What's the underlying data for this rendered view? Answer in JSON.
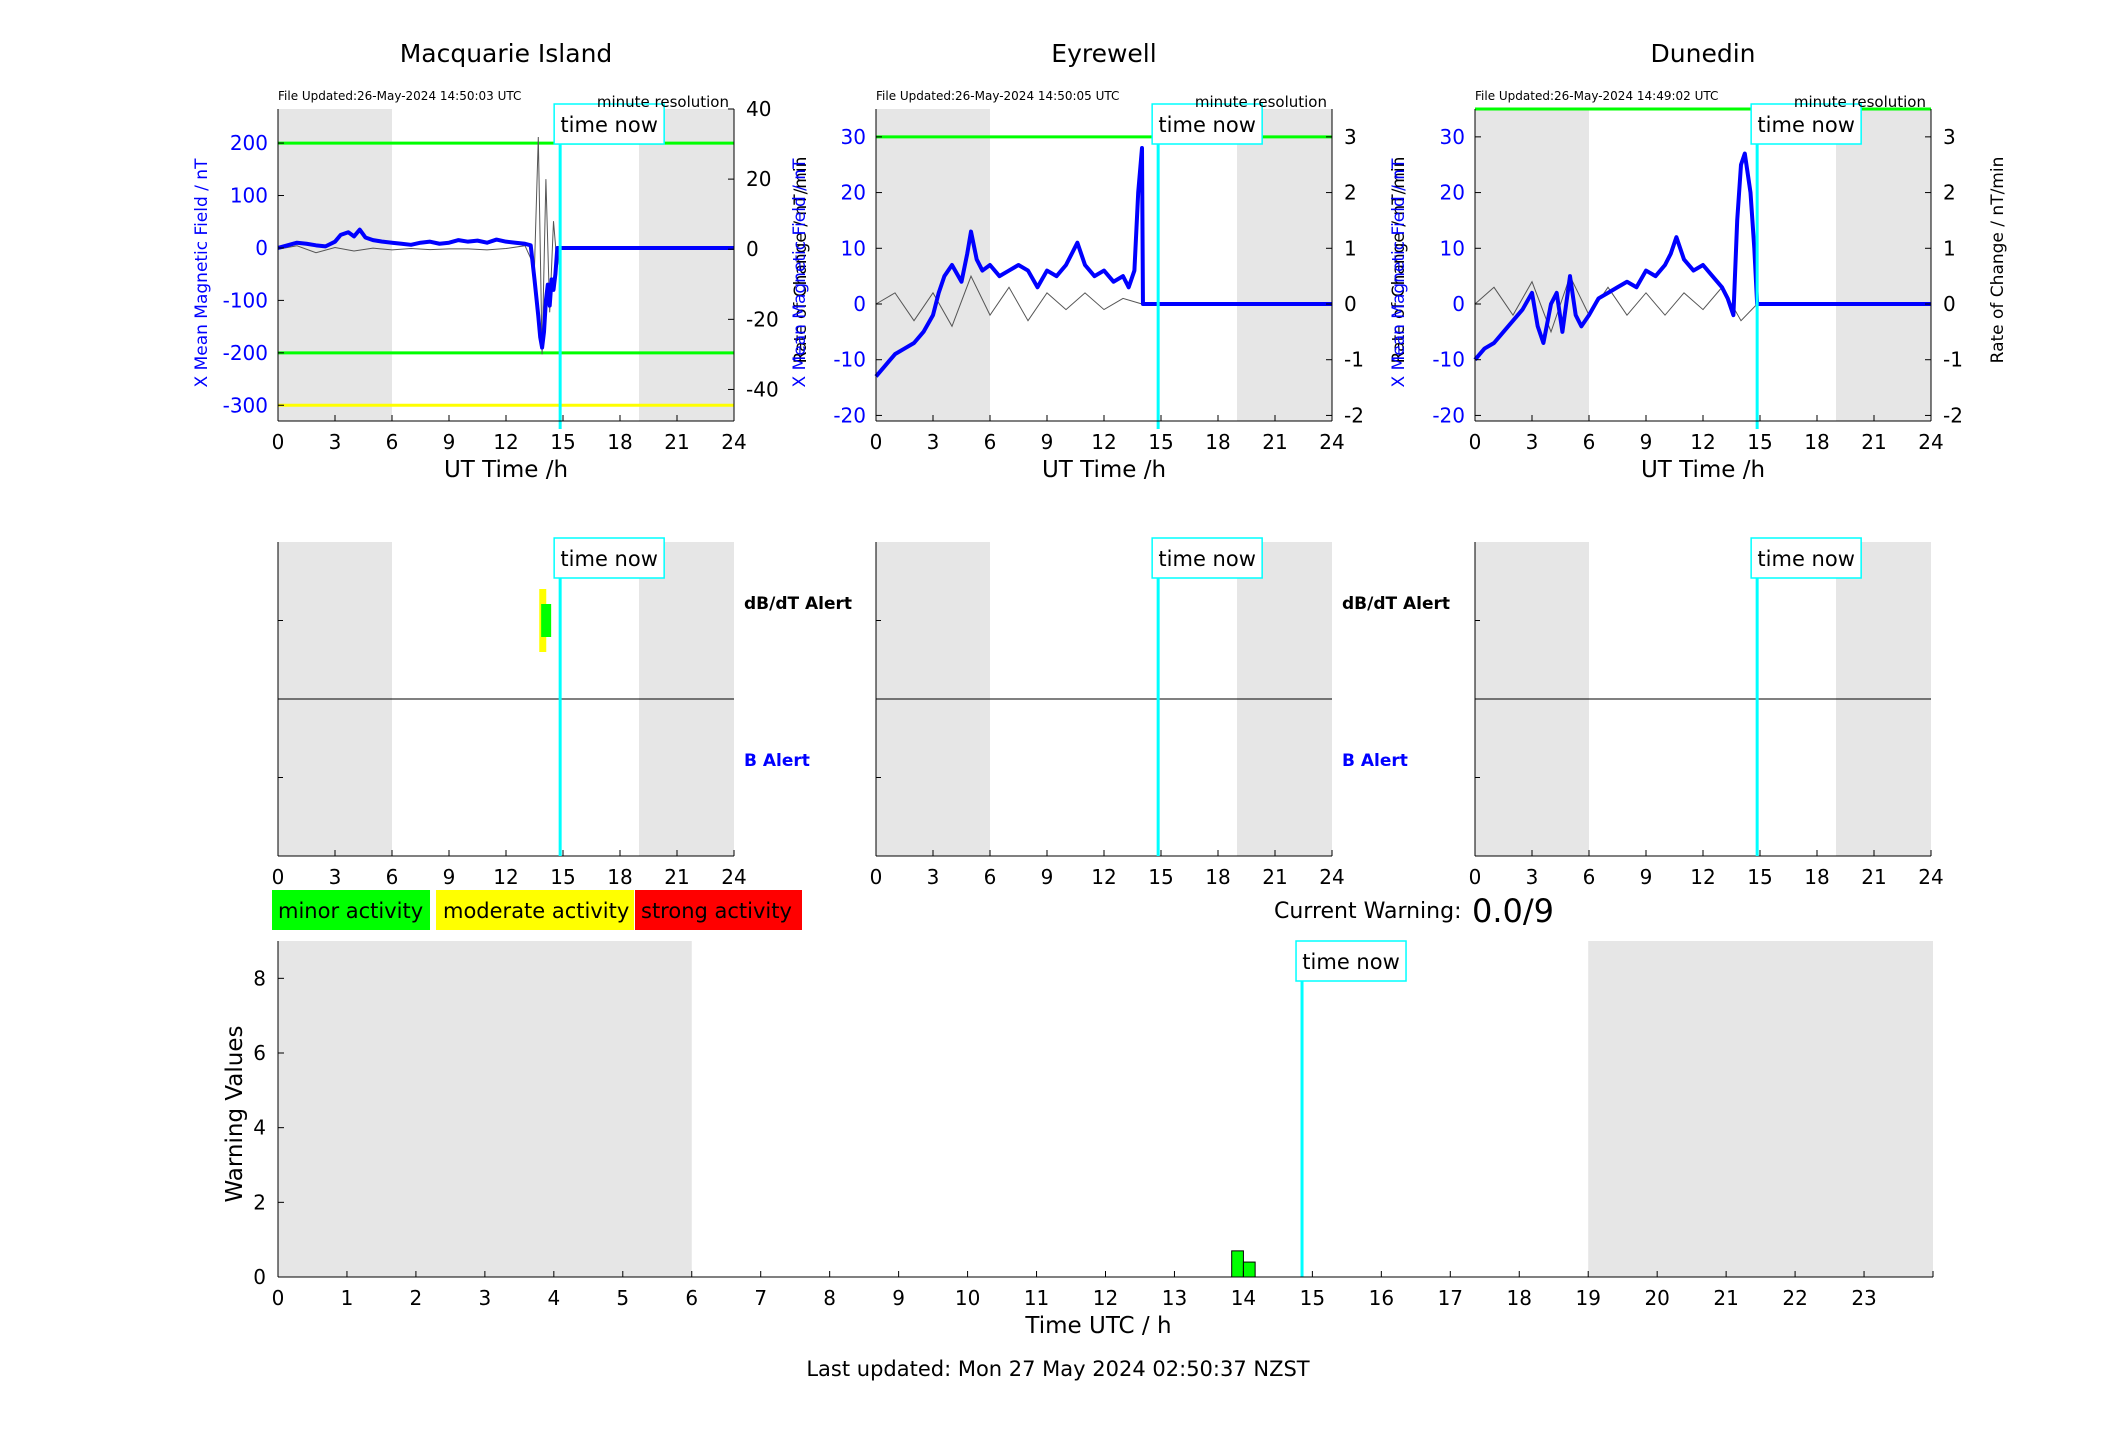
{
  "stations": [
    {
      "name": "Macquarie Island",
      "file_updated": "File Updated:26-May-2024 14:50:03 UTC",
      "resolution": "minute resolution",
      "time_now_label": "time now",
      "ylabel_left": "X Mean Magnetic Field / nT",
      "ylabel_right": "Rate of Change / nT/min",
      "xlabel": "UT Time /h",
      "x_ticks": [
        0,
        3,
        6,
        9,
        12,
        15,
        18,
        21,
        24
      ],
      "yleft_ticks": [
        200,
        100,
        0,
        -100,
        -200,
        -300
      ],
      "yright_ticks": [
        40,
        20,
        0,
        -20,
        -40
      ]
    },
    {
      "name": "Eyrewell",
      "file_updated": "File Updated:26-May-2024 14:50:05 UTC",
      "resolution": "minute resolution",
      "time_now_label": "time now",
      "ylabel_left": "X Mean Magnetic Field / nT",
      "ylabel_right": "Rate of Change / nT/min",
      "xlabel": "UT Time /h",
      "x_ticks": [
        0,
        3,
        6,
        9,
        12,
        15,
        18,
        21,
        24
      ],
      "yleft_ticks": [
        30,
        20,
        10,
        0,
        -10,
        -20
      ],
      "yright_ticks": [
        3,
        2,
        1,
        0,
        -1,
        -2
      ]
    },
    {
      "name": "Dunedin",
      "file_updated": "File Updated:26-May-2024 14:49:02 UTC",
      "resolution": "minute resolution",
      "time_now_label": "time now",
      "ylabel_left": "X Mean Magnetic Field / nT",
      "ylabel_right": "Rate of Change / nT/min",
      "xlabel": "UT Time /h",
      "x_ticks": [
        0,
        3,
        6,
        9,
        12,
        15,
        18,
        21,
        24
      ],
      "yleft_ticks": [
        30,
        20,
        10,
        0,
        -10,
        -20
      ],
      "yright_ticks": [
        3,
        2,
        1,
        0,
        -1,
        -2
      ]
    }
  ],
  "alerts": {
    "dbdt_label": "dB/dT Alert",
    "b_label": "B Alert",
    "time_now_label": "time now"
  },
  "legend": {
    "minor": "minor activity",
    "moderate": "moderate activity",
    "strong": "strong activity"
  },
  "current_warning": {
    "label": "Current Warning:",
    "value": "0.0/9"
  },
  "warning_plot": {
    "ylabel": "Warning Values",
    "xlabel": "Time UTC / h",
    "time_now_label": "time now",
    "x_ticks": [
      0,
      1,
      2,
      3,
      4,
      5,
      6,
      7,
      8,
      9,
      10,
      11,
      12,
      13,
      14,
      15,
      16,
      17,
      18,
      19,
      20,
      21,
      22,
      23
    ],
    "y_ticks": [
      0,
      2,
      4,
      6,
      8
    ]
  },
  "last_updated": "Last updated: Mon 27 May 2024 02:50:37 NZST",
  "colors": {
    "field_line": "#0000ff",
    "rate_line": "#555555",
    "threshold_green": "#00ff00",
    "threshold_yellow": "#ffff00",
    "time_now": "#00ffff",
    "night_shade": "#e6e6e6",
    "minor": "#00ff00",
    "moderate": "#ffff00",
    "strong": "#ff0000"
  },
  "chart_data": [
    {
      "type": "line",
      "title": "Macquarie Island",
      "xlabel": "UT Time /h",
      "ylabel": "X Mean Magnetic Field / nT",
      "y2label": "Rate of Change / nT/min",
      "xlim": [
        0,
        24
      ],
      "ylim": [
        -330,
        265
      ],
      "y2lim": [
        -49,
        40
      ],
      "night_shading_hours": [
        [
          0,
          6
        ],
        [
          19,
          24
        ]
      ],
      "time_now_hour": 14.85,
      "thresholds": [
        {
          "value": 200,
          "color": "green"
        },
        {
          "value": -200,
          "color": "green"
        },
        {
          "value": -300,
          "color": "yellow"
        }
      ],
      "series": [
        {
          "axis": "left",
          "x": [
            0,
            0.5,
            1,
            1.5,
            2,
            2.5,
            3,
            3.3,
            3.7,
            4,
            4.3,
            4.6,
            5,
            5.5,
            6,
            6.5,
            7,
            7.5,
            8,
            8.5,
            9,
            9.5,
            10,
            10.5,
            11,
            11.5,
            12,
            12.5,
            13,
            13.3,
            13.5,
            13.7,
            13.8,
            13.9,
            14,
            14.1,
            14.2,
            14.3,
            14.4,
            14.5,
            14.6,
            14.7,
            14.85,
            15,
            18,
            24
          ],
          "y": [
            0,
            5,
            10,
            8,
            5,
            3,
            12,
            25,
            30,
            22,
            35,
            20,
            15,
            12,
            10,
            8,
            6,
            10,
            12,
            8,
            10,
            15,
            12,
            14,
            10,
            16,
            12,
            10,
            8,
            5,
            -60,
            -130,
            -170,
            -190,
            -160,
            -100,
            -70,
            -110,
            -60,
            -80,
            -50,
            0,
            0,
            0,
            0,
            0
          ]
        },
        {
          "axis": "right",
          "x": [
            0,
            1,
            2,
            3,
            4,
            5,
            6,
            7,
            8,
            9,
            10,
            11,
            12,
            13,
            13.5,
            13.7,
            13.9,
            14.1,
            14.3,
            14.5,
            14.7,
            14.85
          ],
          "y": [
            0,
            1,
            -1,
            0.5,
            -0.5,
            0.3,
            -0.2,
            0.2,
            -0.1,
            0.1,
            0.1,
            -0.2,
            0.2,
            1,
            -5,
            32,
            -30,
            20,
            -18,
            8,
            -5,
            0
          ]
        }
      ]
    },
    {
      "type": "line",
      "title": "Eyrewell",
      "xlabel": "UT Time /h",
      "ylabel": "X Mean Magnetic Field / nT",
      "y2label": "Rate of Change / nT/min",
      "xlim": [
        0,
        24
      ],
      "ylim": [
        -21,
        35
      ],
      "y2lim": [
        -2.1,
        3.5
      ],
      "night_shading_hours": [
        [
          0,
          6
        ],
        [
          19,
          24
        ]
      ],
      "time_now_hour": 14.85,
      "thresholds": [
        {
          "value": 30,
          "color": "green"
        }
      ],
      "series": [
        {
          "axis": "left",
          "x": [
            0,
            0.5,
            1,
            1.5,
            2,
            2.5,
            3,
            3.3,
            3.6,
            4,
            4.5,
            4.8,
            5,
            5.3,
            5.6,
            6,
            6.5,
            7,
            7.5,
            8,
            8.5,
            9,
            9.5,
            10,
            10.3,
            10.6,
            11,
            11.5,
            12,
            12.5,
            13,
            13.3,
            13.6,
            13.8,
            14,
            14.05,
            14.85,
            24
          ],
          "y": [
            -13,
            -11,
            -9,
            -8,
            -7,
            -5,
            -2,
            2,
            5,
            7,
            4,
            9,
            13,
            8,
            6,
            7,
            5,
            6,
            7,
            6,
            3,
            6,
            5,
            7,
            9,
            11,
            7,
            5,
            6,
            4,
            5,
            3,
            6,
            20,
            28,
            0,
            0,
            0
          ]
        },
        {
          "axis": "right",
          "x": [
            0,
            1,
            2,
            3,
            4,
            5,
            6,
            7,
            8,
            9,
            10,
            11,
            12,
            13,
            14
          ],
          "y": [
            0,
            0.2,
            -0.3,
            0.2,
            -0.4,
            0.5,
            -0.2,
            0.3,
            -0.3,
            0.2,
            -0.1,
            0.2,
            -0.1,
            0.1,
            0
          ]
        }
      ]
    },
    {
      "type": "line",
      "title": "Dunedin",
      "xlabel": "UT Time /h",
      "ylabel": "X Mean Magnetic Field / nT",
      "y2label": "Rate of Change / nT/min",
      "xlim": [
        0,
        24
      ],
      "ylim": [
        -21,
        35
      ],
      "y2lim": [
        -2.1,
        3.5
      ],
      "night_shading_hours": [
        [
          0,
          6
        ],
        [
          19,
          24
        ]
      ],
      "time_now_hour": 14.85,
      "thresholds": [
        {
          "value": 35,
          "color": "green"
        }
      ],
      "series": [
        {
          "axis": "left",
          "x": [
            0,
            0.5,
            1,
            1.5,
            2,
            2.5,
            3,
            3.3,
            3.6,
            4,
            4.3,
            4.6,
            5,
            5.3,
            5.6,
            6,
            6.5,
            7,
            7.5,
            8,
            8.5,
            9,
            9.5,
            10,
            10.3,
            10.6,
            11,
            11.5,
            12,
            12.5,
            13,
            13.3,
            13.6,
            13.8,
            14,
            14.2,
            14.5,
            14.7,
            14.85,
            24
          ],
          "y": [
            -10,
            -8,
            -7,
            -5,
            -3,
            -1,
            2,
            -4,
            -7,
            0,
            2,
            -5,
            5,
            -2,
            -4,
            -2,
            1,
            2,
            3,
            4,
            3,
            6,
            5,
            7,
            9,
            12,
            8,
            6,
            7,
            5,
            3,
            1,
            -2,
            15,
            25,
            27,
            20,
            10,
            0,
            0
          ]
        },
        {
          "axis": "right",
          "x": [
            0,
            1,
            2,
            3,
            4,
            5,
            6,
            7,
            8,
            9,
            10,
            11,
            12,
            13,
            14,
            14.85
          ],
          "y": [
            0,
            0.3,
            -0.2,
            0.4,
            -0.5,
            0.5,
            -0.2,
            0.3,
            -0.2,
            0.2,
            -0.2,
            0.2,
            -0.1,
            0.3,
            -0.3,
            0
          ]
        }
      ]
    },
    {
      "type": "bar",
      "title": "",
      "xlabel": "Time UTC / h",
      "ylabel": "Warning Values",
      "xlim": [
        0,
        24
      ],
      "ylim": [
        0,
        9
      ],
      "night_shading_hours": [
        [
          0,
          6
        ],
        [
          19,
          24
        ]
      ],
      "time_now_hour": 14.85,
      "bars": [
        {
          "x": 13.83,
          "width": 0.17,
          "value": 0.7,
          "color": "green"
        },
        {
          "x": 14.0,
          "width": 0.17,
          "value": 0.4,
          "color": "green"
        }
      ]
    }
  ]
}
